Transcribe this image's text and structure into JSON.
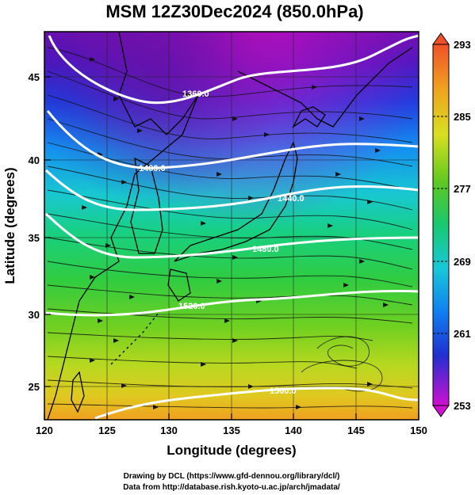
{
  "title": "MSM 12Z30Dec2024 (850.0hPa)",
  "xlabel": "Longitude (degrees)",
  "ylabel": "Latitude  (degrees)",
  "x_ticks": [
    "120",
    "125",
    "130",
    "135",
    "140",
    "145",
    "150"
  ],
  "y_ticks": [
    "25",
    "30",
    "35",
    "40",
    "45"
  ],
  "colorbar": {
    "ticks": [
      "293",
      "285",
      "277",
      "269",
      "261",
      "253"
    ],
    "range": [
      253,
      293
    ]
  },
  "contours": [
    {
      "label": "1360.0"
    },
    {
      "label": "1400.0"
    },
    {
      "label": "1440.0"
    },
    {
      "label": "1480.0"
    },
    {
      "label": "1520.0"
    },
    {
      "label": "1560.0"
    }
  ],
  "credits": [
    "Drawing by DCL (https://www.gfd-dennou.org/library/dcl/)",
    "Data from http://database.rish.kyoto-u.ac.jp/arch/jmadata/"
  ],
  "map_data": {
    "extent": {
      "lon": [
        120,
        150
      ],
      "lat": [
        22.5,
        47.8
      ]
    },
    "field": "temperature (K) shaded, geopotential height contours, wind streamlines",
    "colors": {
      "253": "#c000c0",
      "257": "#4010c0",
      "261": "#1040e0",
      "265": "#10a0f0",
      "269": "#20d0c0",
      "273": "#20d060",
      "277": "#40c820",
      "281": "#90d020",
      "285": "#d8e020",
      "289": "#f0b020",
      "293": "#f07030"
    }
  }
}
